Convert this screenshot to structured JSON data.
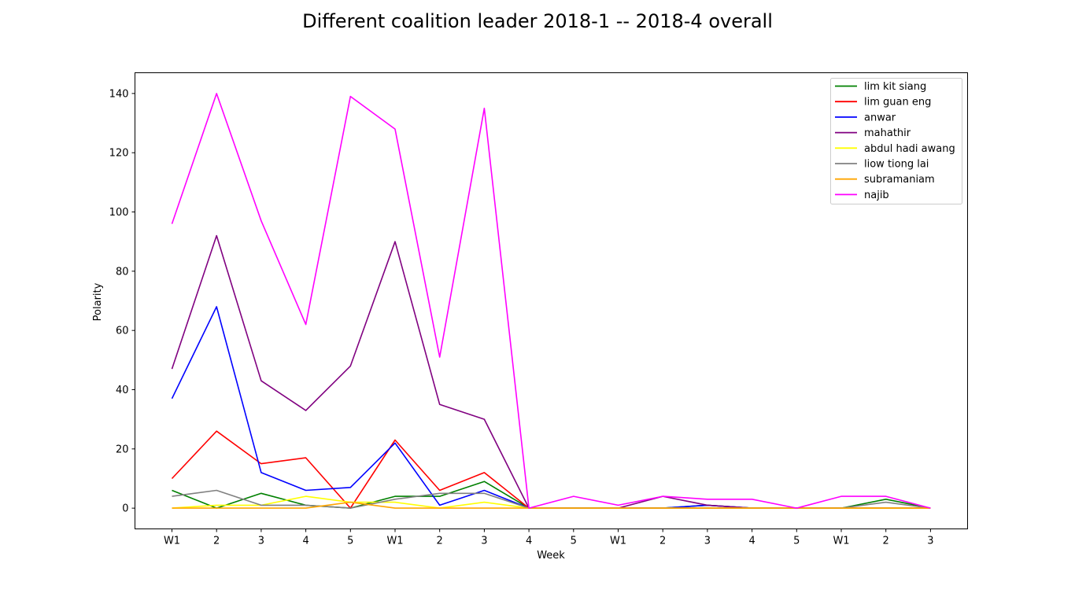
{
  "chart_data": {
    "type": "line",
    "title": "Different coalition leader 2018-1 -- 2018-4 overall",
    "xlabel": "Week",
    "ylabel": "Polarity",
    "categories": [
      "W1",
      "2",
      "3",
      "4",
      "5",
      "W1",
      "2",
      "3",
      "4",
      "5",
      "W1",
      "2",
      "3",
      "4",
      "5",
      "W1",
      "2",
      "3"
    ],
    "ylim": [
      -7,
      147
    ],
    "yticks": [
      0,
      20,
      40,
      60,
      80,
      100,
      120,
      140
    ],
    "grid": false,
    "legend_position": "top-right",
    "series": [
      {
        "name": "lim kit siang",
        "color": "#008000",
        "values": [
          6,
          0,
          5,
          1,
          0,
          4,
          4,
          9,
          0,
          0,
          0,
          0,
          1,
          0,
          0,
          0,
          3,
          0
        ]
      },
      {
        "name": "lim guan eng",
        "color": "#ff0000",
        "values": [
          10,
          26,
          15,
          17,
          0,
          23,
          6,
          12,
          0,
          0,
          0,
          0,
          0,
          0,
          0,
          0,
          0,
          0
        ]
      },
      {
        "name": "anwar",
        "color": "#0000ff",
        "values": [
          37,
          68,
          12,
          6,
          7,
          22,
          1,
          6,
          0,
          0,
          0,
          0,
          1,
          0,
          0,
          0,
          0,
          0
        ]
      },
      {
        "name": "mahathir",
        "color": "#800080",
        "values": [
          47,
          92,
          43,
          33,
          48,
          90,
          35,
          30,
          0,
          0,
          0,
          4,
          1,
          0,
          0,
          0,
          0,
          0
        ]
      },
      {
        "name": "abdul hadi awang",
        "color": "#ffff00",
        "values": [
          0,
          1,
          1,
          4,
          2,
          2,
          0,
          2,
          0,
          0,
          0,
          0,
          0,
          0,
          0,
          0,
          0,
          0
        ]
      },
      {
        "name": "liow tiong lai",
        "color": "#808080",
        "values": [
          4,
          6,
          1,
          1,
          0,
          3,
          5,
          5,
          0,
          0,
          0,
          0,
          0,
          0,
          0,
          0,
          2,
          0
        ]
      },
      {
        "name": "subramaniam",
        "color": "#ffa500",
        "values": [
          0,
          0,
          0,
          0,
          2,
          0,
          0,
          0,
          0,
          0,
          0,
          0,
          0,
          0,
          0,
          0,
          0,
          0
        ]
      },
      {
        "name": "najib",
        "color": "#ff00ff",
        "values": [
          96,
          140,
          97,
          62,
          139,
          128,
          51,
          135,
          0,
          4,
          1,
          4,
          3,
          3,
          0,
          4,
          4,
          0
        ]
      }
    ]
  }
}
